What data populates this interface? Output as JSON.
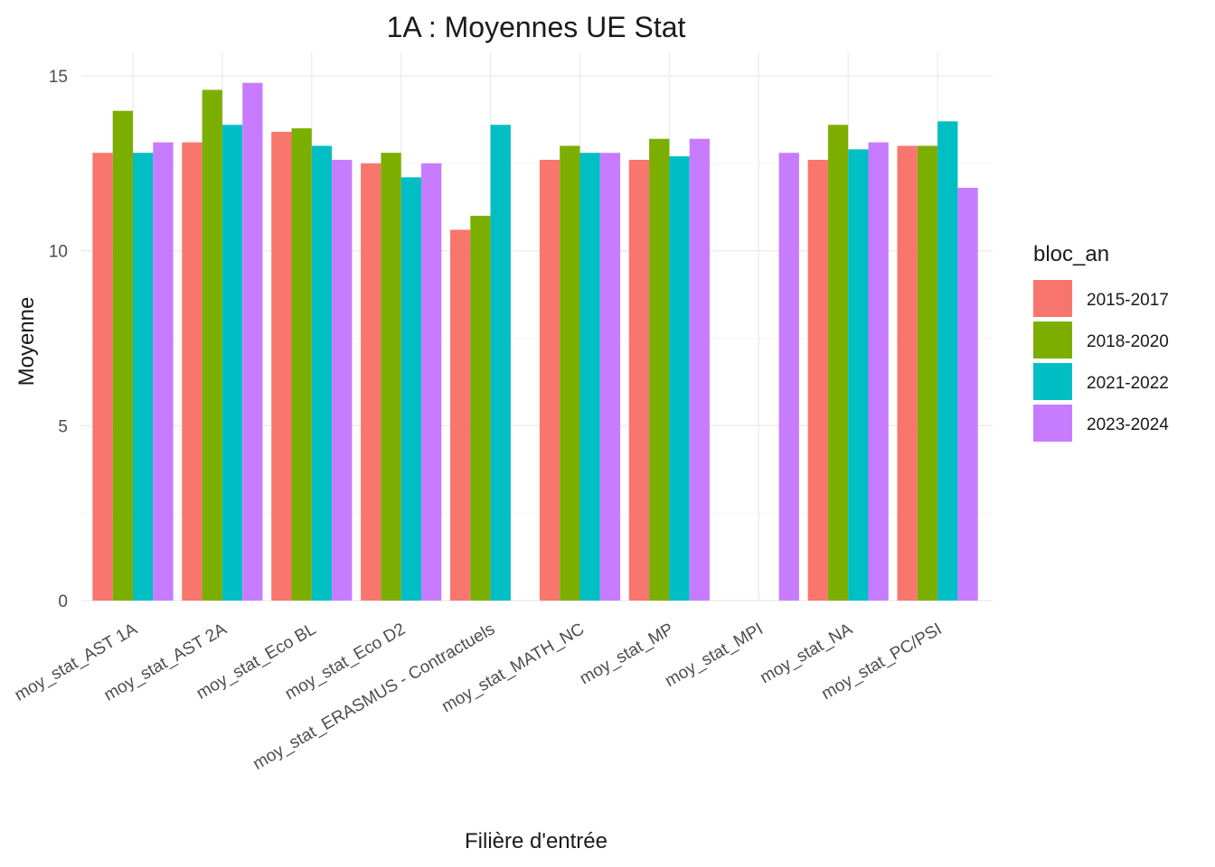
{
  "chart_data": {
    "type": "bar",
    "title": "1A : Moyennes UE Stat",
    "xlabel": "Filière d'entrée",
    "ylabel": "Moyenne",
    "ylim": [
      0,
      15
    ],
    "yticks": [
      0,
      5,
      10,
      15
    ],
    "grid": true,
    "legend": {
      "title": "bloc_an",
      "position": "right"
    },
    "categories": [
      "moy_stat_AST 1A",
      "moy_stat_AST 2A",
      "moy_stat_Eco BL",
      "moy_stat_Eco D2",
      "moy_stat_ERASMUS - Contractuels",
      "moy_stat_MATH_NC",
      "moy_stat_MP",
      "moy_stat_MPI",
      "moy_stat_NA",
      "moy_stat_PC/PSI"
    ],
    "series": [
      {
        "name": "2015-2017",
        "color": "#F8766D",
        "values": [
          12.8,
          13.1,
          13.4,
          12.5,
          10.6,
          12.6,
          12.6,
          null,
          12.6,
          13.0
        ]
      },
      {
        "name": "2018-2020",
        "color": "#7CAE00",
        "values": [
          14.0,
          14.6,
          13.5,
          12.8,
          11.0,
          13.0,
          13.2,
          null,
          13.6,
          13.0
        ]
      },
      {
        "name": "2021-2022",
        "color": "#00BFC4",
        "values": [
          12.8,
          13.6,
          13.0,
          12.1,
          13.6,
          12.8,
          12.7,
          null,
          12.9,
          13.7
        ]
      },
      {
        "name": "2023-2024",
        "color": "#C77CFF",
        "values": [
          13.1,
          14.8,
          12.6,
          12.5,
          null,
          12.8,
          13.2,
          12.8,
          13.1,
          11.8
        ]
      }
    ]
  }
}
